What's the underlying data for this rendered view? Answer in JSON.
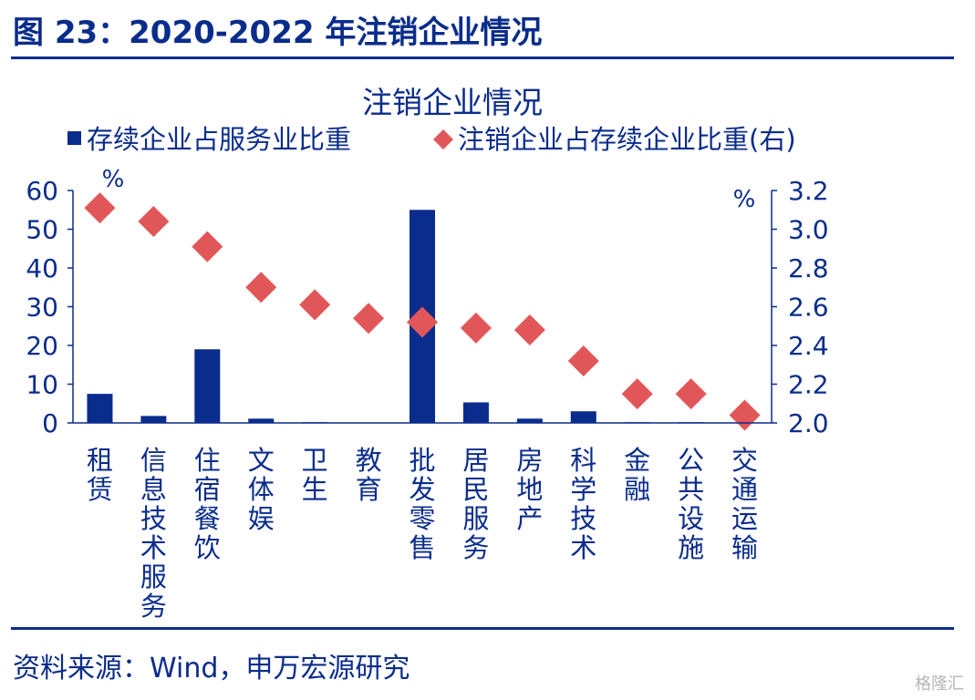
{
  "figure_title": "图 23：2020-2022 年注销企业情况",
  "source": "资料来源：Wind，申万宏源研究",
  "watermark": "格隆汇",
  "colors": {
    "bar": "#0a2c8c",
    "diamond": "#e15759",
    "axis": "#0a2c8c",
    "text": "#0a2c8c"
  },
  "chart_data": {
    "type": "bar",
    "title": "注销企业情况",
    "categories": [
      "租赁",
      "信息技术服务",
      "住宿餐饮",
      "文体娱",
      "卫生",
      "教育",
      "批发零售",
      "居民服务",
      "房地产",
      "科学技术",
      "金融",
      "公共设施",
      "交通运输"
    ],
    "series": [
      {
        "name": "存续企业占服务业比重",
        "kind": "bar",
        "axis": "left",
        "values": [
          7.5,
          1.8,
          19,
          1.1,
          0.2,
          0.1,
          55,
          5.3,
          1.1,
          3.0,
          0.2,
          0.2,
          0.1
        ]
      },
      {
        "name": "注销企业占存续企业比重(右)",
        "kind": "scatter",
        "marker": "diamond",
        "axis": "right",
        "values": [
          3.11,
          3.04,
          2.91,
          2.7,
          2.61,
          2.54,
          2.52,
          2.49,
          2.48,
          2.32,
          2.15,
          2.15,
          2.04
        ]
      }
    ],
    "y_left": {
      "range": [
        0,
        60
      ],
      "ticks": [
        "0",
        "10",
        "20",
        "30",
        "40",
        "50",
        "60"
      ],
      "unit": "%"
    },
    "y_right": {
      "range": [
        2.0,
        3.2
      ],
      "ticks": [
        "2.0",
        "2.2",
        "2.4",
        "2.6",
        "2.8",
        "3.0",
        "3.2"
      ],
      "unit": "%"
    },
    "legend_position": "top",
    "grid": false
  }
}
